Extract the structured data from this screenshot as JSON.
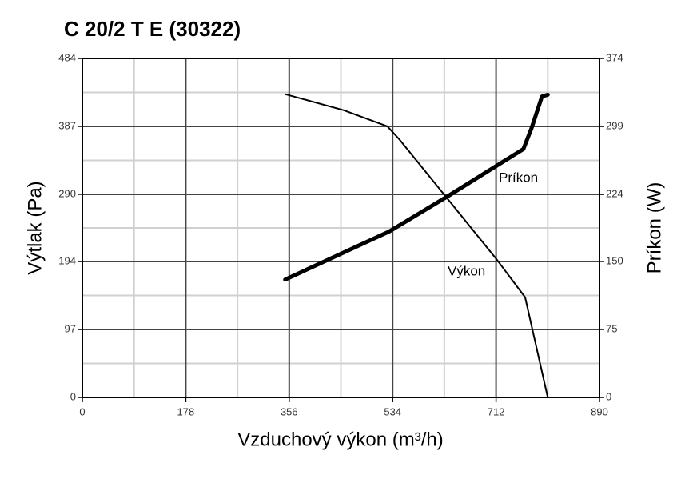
{
  "chart_data": {
    "type": "line",
    "title": "C 20/2 T E (30322)",
    "x_label": "Vzduchový výkon (m³/h)",
    "y_label": "Výtlak (Pa)",
    "y2_label": "Príkon (W)",
    "xlim": [
      0,
      890
    ],
    "xticks": [
      0,
      178,
      356,
      534,
      712,
      890
    ],
    "ylim": [
      0,
      484
    ],
    "yticks": [
      0,
      97,
      194,
      290,
      387,
      484
    ],
    "y2lim": [
      0,
      374
    ],
    "y2ticks": [
      0,
      75,
      150,
      224,
      299,
      374
    ],
    "grid": true,
    "series": [
      {
        "name": "Výkon",
        "color": "#000000",
        "x": [
          349,
          450,
          525,
          546,
          636,
          714,
          762,
          777,
          801
        ],
        "values": [
          433,
          410,
          387,
          368,
          276,
          196,
          143,
          88,
          0
        ]
      },
      {
        "name": "Príkon",
        "color": "#000000",
        "axis": "y2",
        "x": [
          349,
          528,
          629,
          759,
          773,
          791,
          801
        ],
        "values": [
          130,
          183,
          222,
          274,
          297,
          332,
          334
        ]
      }
    ]
  }
}
